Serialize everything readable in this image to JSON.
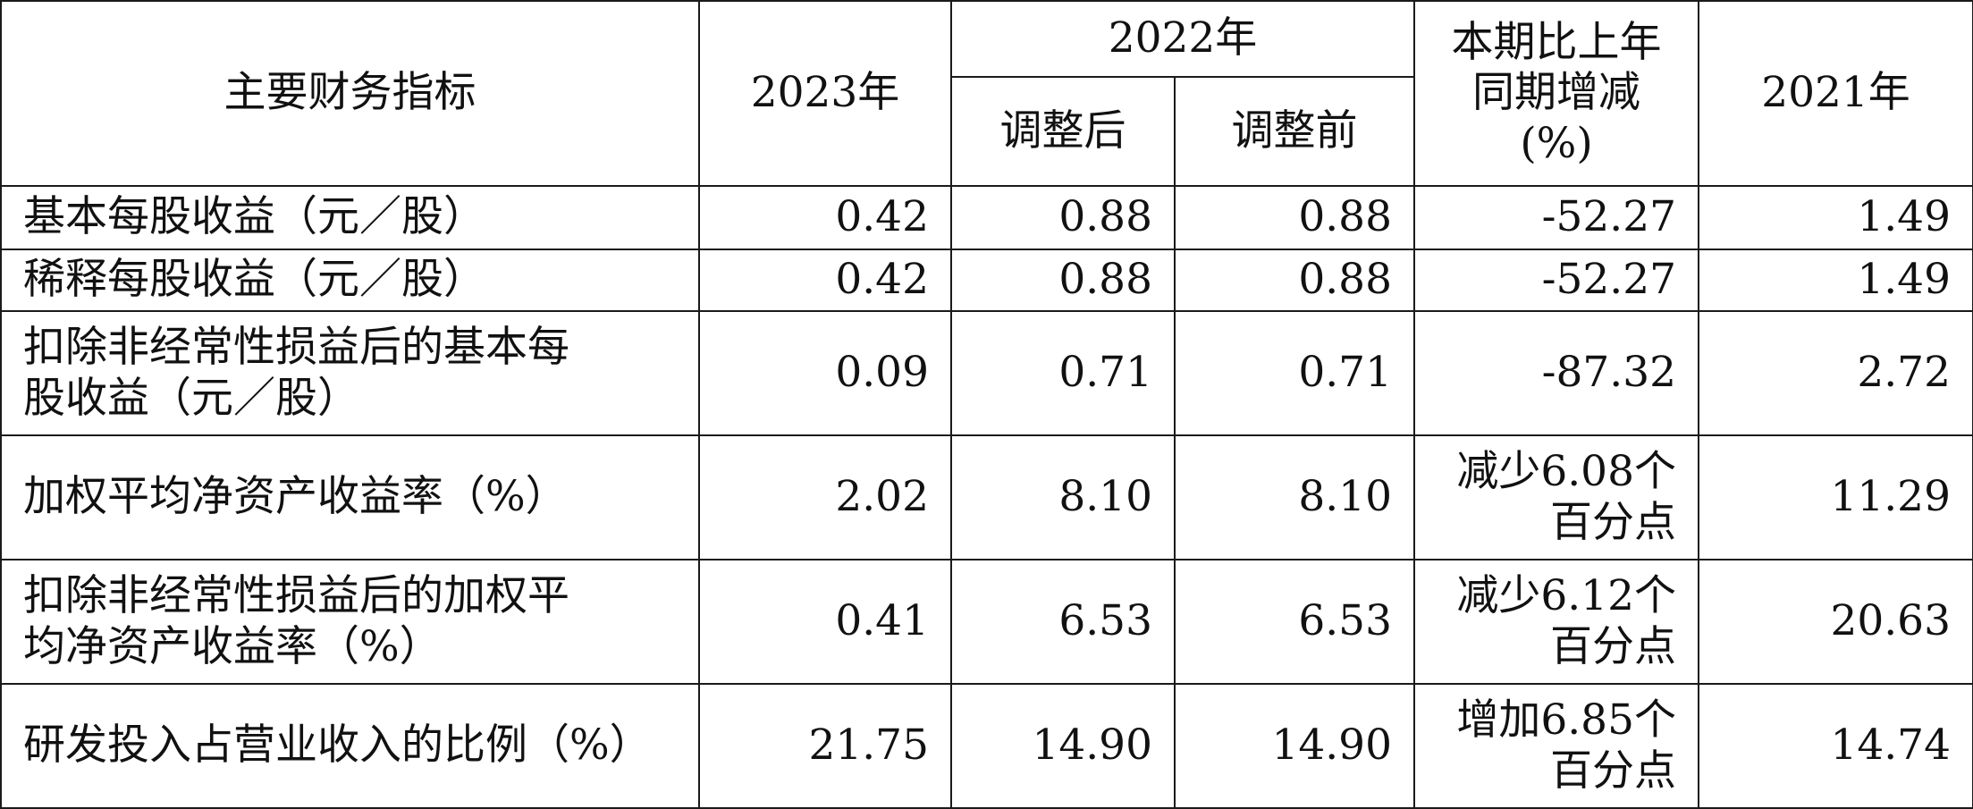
{
  "header": {
    "indicator": "主要财务指标",
    "y2023": "2023年",
    "y2022": "2022年",
    "adjusted_after": "调整后",
    "adjusted_before": "调整前",
    "change_line1": "本期比上年",
    "change_line2": "同期增减",
    "change_line3": "(%)",
    "y2021": "2021年"
  },
  "rows": [
    {
      "name_line1": "基本每股收益（元／股）",
      "name_line2": "",
      "v2023": "0.42",
      "v2022_after": "0.88",
      "v2022_before": "0.88",
      "change_line1": "-52.27",
      "change_line2": "",
      "v2021": "1.49"
    },
    {
      "name_line1": "稀释每股收益（元／股）",
      "name_line2": "",
      "v2023": "0.42",
      "v2022_after": "0.88",
      "v2022_before": "0.88",
      "change_line1": "-52.27",
      "change_line2": "",
      "v2021": "1.49"
    },
    {
      "name_line1": "扣除非经常性损益后的基本每",
      "name_line2": "股收益（元／股）",
      "v2023": "0.09",
      "v2022_after": "0.71",
      "v2022_before": "0.71",
      "change_line1": "-87.32",
      "change_line2": "",
      "v2021": "2.72"
    },
    {
      "name_line1": "加权平均净资产收益率（%）",
      "name_line2": "",
      "v2023": "2.02",
      "v2022_after": "8.10",
      "v2022_before": "8.10",
      "change_line1": "减少6.08个",
      "change_line2": "百分点",
      "v2021": "11.29"
    },
    {
      "name_line1": "扣除非经常性损益后的加权平",
      "name_line2": "均净资产收益率（%）",
      "v2023": "0.41",
      "v2022_after": "6.53",
      "v2022_before": "6.53",
      "change_line1": "减少6.12个",
      "change_line2": "百分点",
      "v2021": "20.63"
    },
    {
      "name_line1": "研发投入占营业收入的比例（%）",
      "name_line2": "",
      "v2023": "21.75",
      "v2022_after": "14.90",
      "v2022_before": "14.90",
      "change_line1": "增加6.85个",
      "change_line2": "百分点",
      "v2021": "14.74"
    }
  ]
}
